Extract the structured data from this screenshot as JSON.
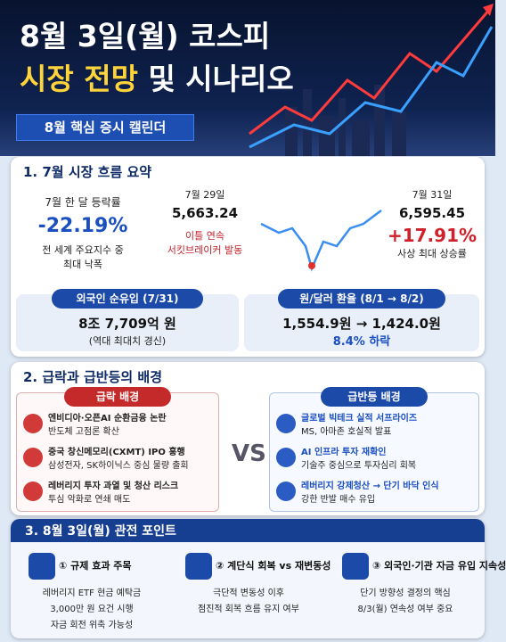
{
  "header": {
    "title_line1": "8월 3일(월) 코스피",
    "title_line2_highlight": "시장 전망",
    "title_line2_rest": "및 시나리오",
    "subtitle": "8월 핵심 증시 캘린더"
  },
  "section1": {
    "title": "1. 7월 시장 흐름 요약",
    "monthly": {
      "label": "7월 한 달 등락률",
      "value": "-22.19%",
      "note_line1": "전 세계 주요지수 중",
      "note_line2": "최대 낙폭"
    },
    "jul29": {
      "date": "7월 29일",
      "value": "5,663.24",
      "note_line1": "이틀 연속",
      "note_line2": "서킷브레이커 발동"
    },
    "jul31": {
      "date": "7월 31일",
      "value": "6,595.45",
      "change": "+17.91%",
      "note": "사상 최대 상승률"
    },
    "foreign": {
      "label": "외국인 순유입 (7/31)",
      "value": "8조 7,709억 원",
      "note": "(역대 최대치 경신)"
    },
    "fx": {
      "label": "원/달러 환율 (8/1 → 8/2)",
      "value": "1,554.9원 → 1,424.0원",
      "note": "8.4% 하락"
    }
  },
  "section2": {
    "title": "2. 급락과 급반등의 배경",
    "vs": "VS",
    "crash": {
      "title": "급락 배경",
      "items": [
        {
          "line1": "엔비디아·오픈AI 순환금융 논란",
          "line2": "반도체 고점론 확산"
        },
        {
          "line1": "중국 창신메모리(CXMT) IPO 흥행",
          "line2": "삼성전자, SK하이닉스 중심 물량 출회"
        },
        {
          "line1": "레버리지 투자 과열 및 청산 리스크",
          "line2": "투심 악화로 연쇄 매도"
        }
      ]
    },
    "rebound": {
      "title": "급반등 배경",
      "items": [
        {
          "line1": "글로벌 빅테크 실적 서프라이즈",
          "line2": "MS, 아마존 호실적 발표"
        },
        {
          "line1": "AI 인프라 투자 재확인",
          "line2": "기술주 중심으로 투자심리 회복"
        },
        {
          "line1": "레버리지 강제청산 → 단기 바닥 인식",
          "line2": "강한 반발 매수 유입"
        }
      ]
    }
  },
  "section3": {
    "title": "3. 8월 3일(월) 관전 포인트",
    "points": [
      {
        "title": "① 규제 효과 주목",
        "lines": [
          "레버리지 ETF 현금 예탁금",
          "3,000만 원 요건 시행",
          "자금 회전 위축 가능성"
        ]
      },
      {
        "title": "② 계단식 회복 vs 재변동성",
        "lines": [
          "극단적 변동성 이후",
          "점진적 회복 흐름 유지 여부"
        ]
      },
      {
        "title": "③ 외국인·기관 자금 유입 지속성",
        "lines": [
          "단기 방향성 결정의 핵심",
          "8/3(월) 연속성 여부 중요"
        ]
      }
    ]
  }
}
